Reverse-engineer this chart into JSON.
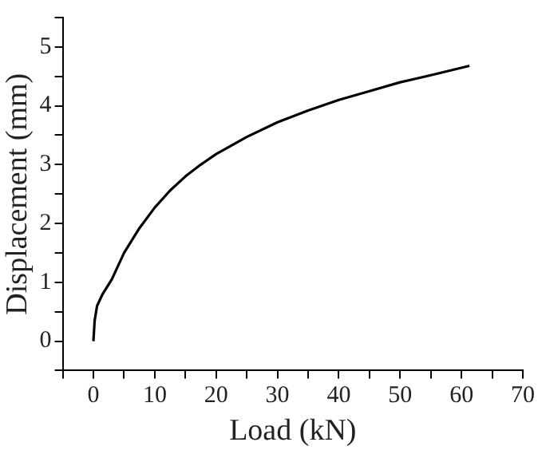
{
  "chart_data": {
    "type": "line",
    "xlabel": "Load (kN)",
    "ylabel": "Displacement (mm)",
    "x": [
      0,
      0.2,
      0.6,
      1.5,
      3,
      5,
      7.5,
      10,
      12.5,
      15,
      17.5,
      20,
      25,
      30,
      35,
      40,
      45,
      50,
      55,
      61.3
    ],
    "series": [
      {
        "color": "#000000",
        "values": [
          0,
          0.35,
          0.6,
          0.8,
          1.05,
          1.5,
          1.92,
          2.27,
          2.56,
          2.8,
          3.0,
          3.18,
          3.47,
          3.72,
          3.92,
          4.1,
          4.25,
          4.4,
          4.52,
          4.68
        ]
      }
    ],
    "xlim": [
      -5,
      70
    ],
    "ylim": [
      -0.5,
      5.5
    ],
    "xticks": [
      {
        "value": -5,
        "label": null
      },
      0,
      {
        "value": 5,
        "label": null
      },
      10,
      {
        "value": 15,
        "label": null
      },
      20,
      {
        "value": 25,
        "label": null
      },
      30,
      {
        "value": 35,
        "label": null
      },
      40,
      {
        "value": 45,
        "label": null
      },
      50,
      {
        "value": 55,
        "label": null
      },
      60,
      {
        "value": 65,
        "label": null
      },
      70
    ],
    "yticks": [
      {
        "value": -0.5,
        "label": null
      },
      0,
      {
        "value": 0.5,
        "label": null
      },
      1,
      {
        "value": 1.5,
        "label": null
      },
      2,
      {
        "value": 2.5,
        "label": null
      },
      3,
      {
        "value": 3.5,
        "label": null
      },
      4,
      {
        "value": 4.5,
        "label": null
      },
      5,
      {
        "value": 5.5,
        "label": null
      }
    ],
    "grid": false,
    "legend": false,
    "marker": "none",
    "line_style": "solid"
  }
}
